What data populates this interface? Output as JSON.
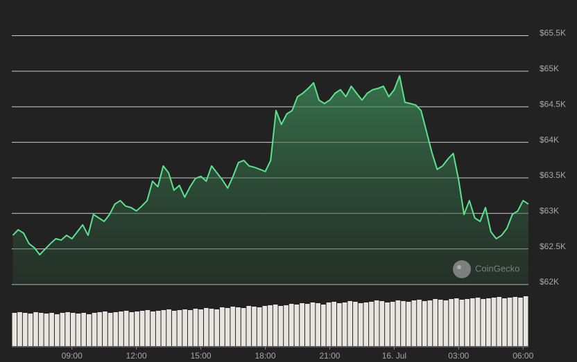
{
  "chart_data": {
    "type": "line",
    "watermark": "CoinGecko",
    "x": [
      6.25,
      6.5,
      6.75,
      7,
      7.25,
      7.5,
      7.75,
      8,
      8.25,
      8.5,
      8.75,
      9,
      9.25,
      9.5,
      9.75,
      10,
      10.25,
      10.5,
      10.75,
      11,
      11.25,
      11.5,
      11.75,
      12,
      12.25,
      12.5,
      12.75,
      13,
      13.25,
      13.5,
      13.75,
      14,
      14.25,
      14.5,
      14.75,
      15,
      15.25,
      15.5,
      15.75,
      16,
      16.25,
      16.5,
      16.75,
      17,
      17.25,
      17.5,
      17.75,
      18,
      18.25,
      18.5,
      18.75,
      19,
      19.25,
      19.5,
      19.75,
      20,
      20.25,
      20.5,
      20.75,
      21,
      21.25,
      21.5,
      21.75,
      22,
      22.25,
      22.5,
      22.75,
      23,
      23.25,
      23.5,
      23.75,
      24,
      24.25,
      24.5,
      24.75,
      25,
      25.25,
      25.5,
      25.75,
      26,
      26.25,
      26.5,
      26.75,
      27,
      27.25,
      27.5,
      27.75,
      28,
      28.25,
      28.5,
      28.75,
      29,
      29.25,
      29.5,
      29.75,
      30,
      30.25
    ],
    "series": [
      {
        "color": "#5be38e",
        "values": [
          62692,
          62770,
          62722,
          62575,
          62517,
          62419,
          62497,
          62575,
          62644,
          62624,
          62692,
          62644,
          62741,
          62839,
          62692,
          62985,
          62936,
          62887,
          62985,
          63131,
          63180,
          63102,
          63082,
          63034,
          63102,
          63180,
          63453,
          63375,
          63667,
          63570,
          63326,
          63394,
          63229,
          63375,
          63492,
          63521,
          63453,
          63667,
          63570,
          63472,
          63355,
          63521,
          63716,
          63745,
          63667,
          63648,
          63619,
          63589,
          63745,
          64447,
          64252,
          64399,
          64447,
          64642,
          64691,
          64759,
          64837,
          64594,
          64545,
          64594,
          64691,
          64740,
          64642,
          64789,
          64691,
          64594,
          64691,
          64740,
          64759,
          64789,
          64642,
          64740,
          64935,
          64564,
          64545,
          64525,
          64447,
          64155,
          63862,
          63619,
          63667,
          63765,
          63843,
          63472,
          62985,
          63180,
          62936,
          62887,
          63082,
          62741,
          62644,
          62692,
          62790,
          62985,
          63034,
          63180,
          63131
        ]
      }
    ],
    "volume": {
      "color": "#e8e5e0",
      "ylim": [
        0,
        80
      ],
      "values": [
        48,
        49,
        48,
        47,
        49,
        48,
        47,
        48,
        46,
        48,
        49,
        48,
        47,
        48,
        46,
        48,
        49,
        50,
        48,
        49,
        50,
        51,
        49,
        50,
        51,
        52,
        50,
        51,
        52,
        53,
        51,
        52,
        53,
        52,
        54,
        53,
        55,
        54,
        53,
        56,
        55,
        57,
        56,
        55,
        58,
        57,
        56,
        58,
        59,
        60,
        58,
        59,
        61,
        60,
        62,
        61,
        63,
        62,
        60,
        63,
        64,
        62,
        63,
        65,
        64,
        62,
        63,
        64,
        66,
        65,
        63,
        64,
        66,
        65,
        64,
        66,
        67,
        65,
        66,
        68,
        67,
        66,
        68,
        69,
        67,
        68,
        69,
        70,
        68,
        69,
        70,
        71,
        69,
        70,
        71,
        70,
        72
      ]
    },
    "xlim": [
      6.2,
      30.25
    ],
    "xticks": [
      {
        "value": 9,
        "label": "09:00"
      },
      {
        "value": 12,
        "label": "12:00"
      },
      {
        "value": 15,
        "label": "15:00"
      },
      {
        "value": 18,
        "label": "18:00"
      },
      {
        "value": 21,
        "label": "21:00"
      },
      {
        "value": 24,
        "label": "16. Jul"
      },
      {
        "value": 27,
        "label": "03:00"
      },
      {
        "value": 30,
        "label": "06:00"
      }
    ],
    "ylim": [
      62000,
      65700
    ],
    "yticks": [
      {
        "value": 62000,
        "label": "$62K"
      },
      {
        "value": 62500,
        "label": "$62.5K"
      },
      {
        "value": 63000,
        "label": "$63K"
      },
      {
        "value": 63500,
        "label": "$63.5K"
      },
      {
        "value": 64000,
        "label": "$64K"
      },
      {
        "value": 64500,
        "label": "$64.5K"
      },
      {
        "value": 65000,
        "label": "$65K"
      },
      {
        "value": 65500,
        "label": "$65.5K"
      }
    ],
    "grid": true
  }
}
